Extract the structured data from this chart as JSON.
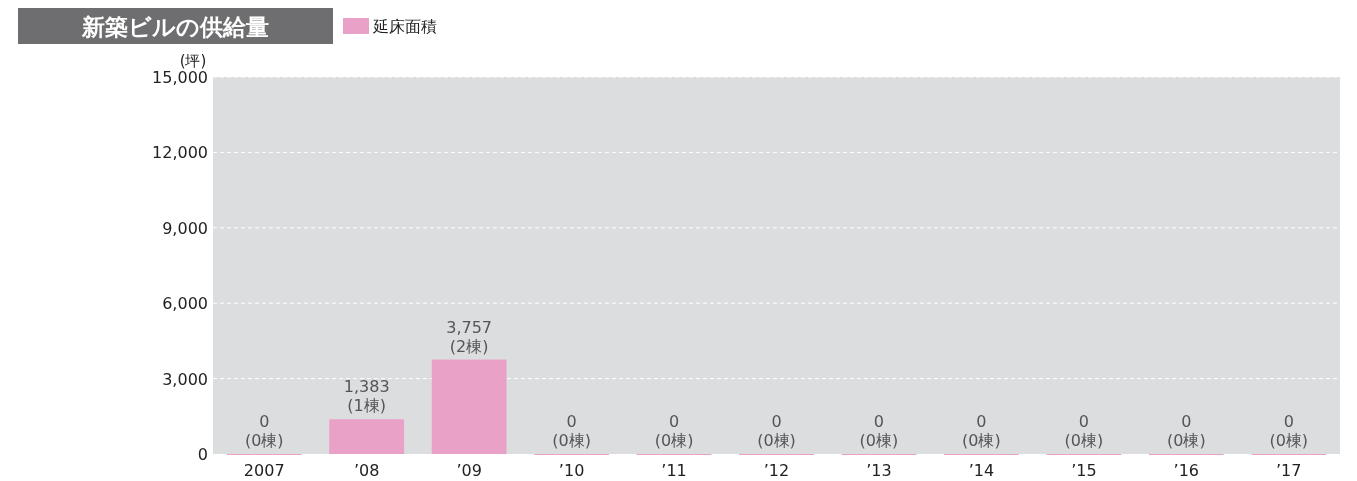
{
  "chart_data": {
    "type": "bar",
    "title": "新築ビルの供給量",
    "ylabel": "(坪)",
    "categories": [
      "2007",
      "’08",
      "’09",
      "’10",
      "’11",
      "’12",
      "’13",
      "’14",
      "’15",
      "’16",
      "’17"
    ],
    "series": [
      {
        "name": "延床面積",
        "color": "#e9a1c7",
        "values": [
          0,
          1383,
          3757,
          0,
          0,
          0,
          0,
          0,
          0,
          0,
          0
        ],
        "value_labels": [
          "0\n(0棟)",
          "1,383\n(1棟)",
          "3,757\n(2棟)",
          "0\n(0棟)",
          "0\n(0棟)",
          "0\n(0棟)",
          "0\n(0棟)",
          "0\n(0棟)",
          "0\n(0棟)",
          "0\n(0棟)",
          "0\n(0棟)"
        ]
      }
    ],
    "ylim": [
      0,
      15000
    ],
    "yticks": [
      {
        "value": 0,
        "label": "0"
      },
      {
        "value": 3000,
        "label": "3,000"
      },
      {
        "value": 6000,
        "label": "6,000"
      },
      {
        "value": 9000,
        "label": "9,000"
      },
      {
        "value": 12000,
        "label": "12,000"
      },
      {
        "value": 15000,
        "label": "15,000"
      }
    ],
    "grid": "y",
    "legend": "top left"
  }
}
